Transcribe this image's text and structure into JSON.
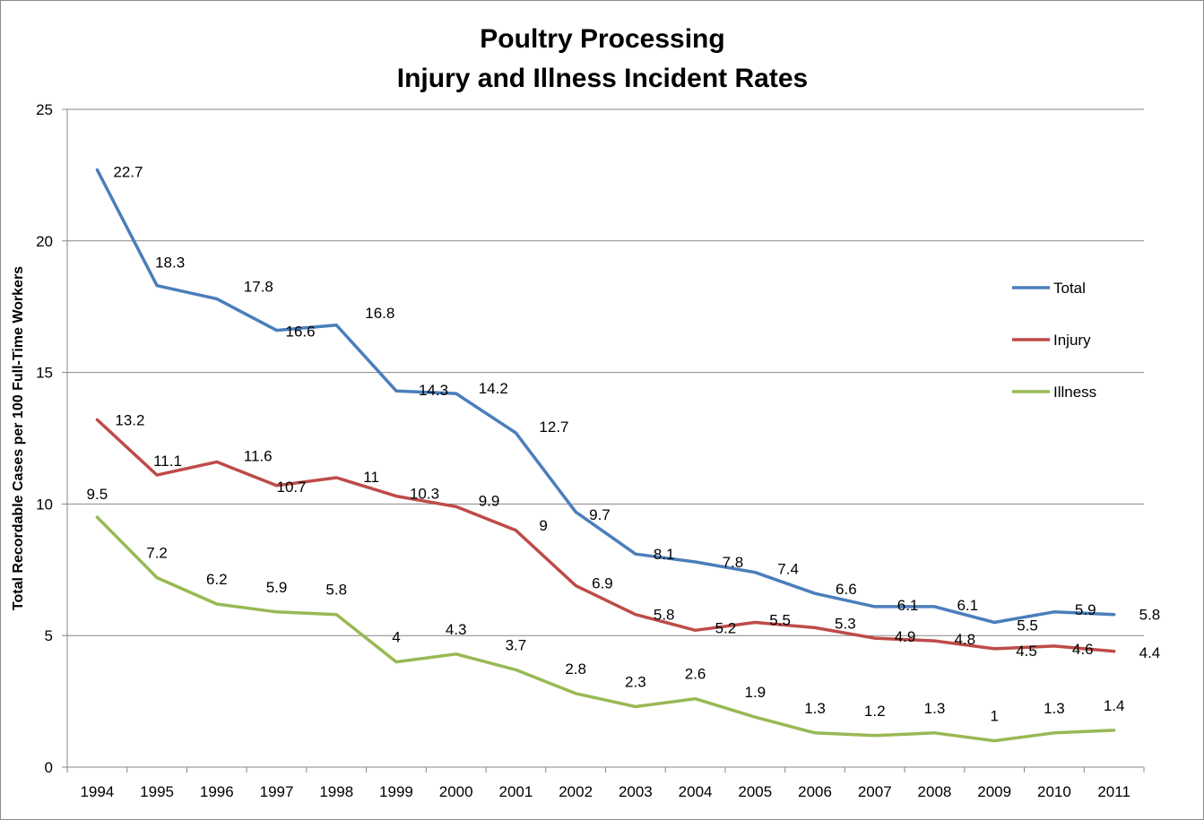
{
  "chart_data": {
    "type": "line",
    "title_lines": [
      "Poultry Processing",
      "Injury and Illness Incident Rates"
    ],
    "xlabel": "",
    "ylabel": "Total Recordable Cases per 100 Full-Time Workers",
    "ylim": [
      0,
      25
    ],
    "yticks": [
      "0",
      "5",
      "10",
      "15",
      "20",
      "25"
    ],
    "grid": true,
    "legend_position": "right",
    "categories": [
      "1994",
      "1995",
      "1996",
      "1997",
      "1998",
      "1999",
      "2000",
      "2001",
      "2002",
      "2003",
      "2004",
      "2005",
      "2006",
      "2007",
      "2008",
      "2009",
      "2010",
      "2011"
    ],
    "series": [
      {
        "name": "Total",
        "color": "#4a7ebb",
        "values": [
          22.7,
          18.3,
          17.8,
          16.6,
          16.8,
          14.3,
          14.2,
          12.7,
          9.7,
          8.1,
          7.8,
          7.4,
          6.6,
          6.1,
          6.1,
          5.5,
          5.9,
          5.8
        ],
        "labels": [
          "22.7",
          "18.3",
          "17.8",
          "16.6",
          "16.8",
          "14.3",
          "14.2",
          "12.7",
          "9.7",
          "8.1",
          "7.8",
          "7.4",
          "6.6",
          "6.1",
          "6.1",
          "5.5",
          "5.9",
          "5.8"
        ]
      },
      {
        "name": "Injury",
        "color": "#be4b48",
        "values": [
          13.2,
          11.1,
          11.6,
          10.7,
          11,
          10.3,
          9.9,
          9,
          6.9,
          5.8,
          5.2,
          5.5,
          5.3,
          4.9,
          4.8,
          4.5,
          4.6,
          4.4
        ],
        "labels": [
          "13.2",
          "11.1",
          "11.6",
          "10.7",
          "11",
          "10.3",
          "9.9",
          "9",
          "6.9",
          "5.8",
          "5.2",
          "5.5",
          "5.3",
          "4.9",
          "4.8",
          "4.5",
          "4.6",
          "4.4"
        ]
      },
      {
        "name": "Illness",
        "color": "#98b954",
        "values": [
          9.5,
          7.2,
          6.2,
          5.9,
          5.8,
          4,
          4.3,
          3.7,
          2.8,
          2.3,
          2.6,
          1.9,
          1.3,
          1.2,
          1.3,
          1,
          1.3,
          1.4
        ],
        "labels": [
          "9.5",
          "7.2",
          "6.2",
          "5.9",
          "5.8",
          "4",
          "4.3",
          "3.7",
          "2.8",
          "2.3",
          "2.6",
          "1.9",
          "1.3",
          "1.2",
          "1.3",
          "1",
          "1.3",
          "1.4"
        ]
      }
    ]
  }
}
